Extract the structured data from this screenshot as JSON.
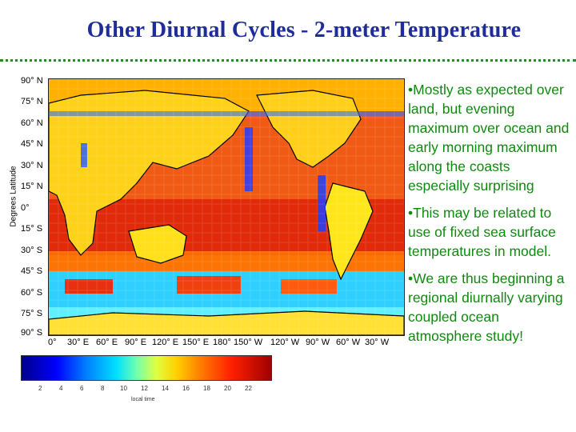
{
  "slide": {
    "title": "Other Diurnal Cycles - 2-meter Temperature"
  },
  "figure": {
    "y_axis_title": "Degrees Latitude",
    "lat_ticks": [
      "90° N",
      "75° N",
      "60° N",
      "45° N",
      "30° N",
      "15° N",
      "0°",
      "15° S",
      "30° S",
      "45° S",
      "60° S",
      "75° S",
      "90° S"
    ],
    "lon_ticks": [
      "0°",
      "30° E",
      "60° E",
      "90° E",
      "120° E",
      "150° E",
      "180°",
      "150° W",
      "120° W",
      "90° W",
      "60° W",
      "30° W"
    ],
    "colorbar": {
      "ticks": [
        "2",
        "4",
        "6",
        "8",
        "10",
        "12",
        "14",
        "16",
        "18",
        "20",
        "22"
      ],
      "label": "local time",
      "colors": [
        "#00008b",
        "#0000ff",
        "#0080ff",
        "#00e0ff",
        "#6fffb0",
        "#e0ff40",
        "#ffd000",
        "#ff7a00",
        "#ff2000",
        "#a00000"
      ]
    }
  },
  "bullets": [
    "•Mostly as expected over land, but evening maximum over ocean and early morning maximum along the coasts especially surprising",
    "•This may be related to use of fixed sea surface temperatures in model.",
    "•We are thus beginning a regional diurnally varying coupled ocean atmosphere study!"
  ],
  "colors": {
    "title": "#1f2d9a",
    "bullets": "#0f8a0f",
    "divider": "#2a8a2a"
  }
}
